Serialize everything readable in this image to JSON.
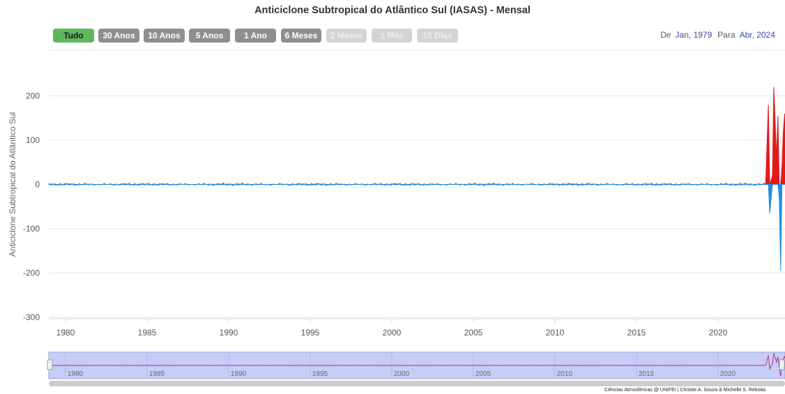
{
  "title": "Anticiclone Subtropical do Atlântico Sul (IASAS) - Mensal",
  "range_buttons": [
    {
      "label": "Tudo",
      "state": "active"
    },
    {
      "label": "30 Anos",
      "state": "enabled"
    },
    {
      "label": "10 Anos",
      "state": "enabled"
    },
    {
      "label": "5 Anos",
      "state": "enabled"
    },
    {
      "label": "1 Ano",
      "state": "enabled"
    },
    {
      "label": "6 Meses",
      "state": "enabled"
    },
    {
      "label": "2 Meses",
      "state": "disabled"
    },
    {
      "label": "1 Mês",
      "state": "disabled"
    },
    {
      "label": "15 Dias",
      "state": "disabled"
    }
  ],
  "date_range": {
    "from_label": "De",
    "from_value": "Jan, 1979",
    "to_label": "Para",
    "to_value": "Abr, 2024"
  },
  "credit": "Ciências Atmosféricas @ UNIFEI | Christie A. Souza & Michelle S. Reboita",
  "colors": {
    "positive": "#e31a1c",
    "negative": "#1f8fe0",
    "active_button": "#5cb85c",
    "navigator_fill": "#c8cdf7"
  },
  "chart_data": {
    "type": "area",
    "title": "Anticiclone Subtropical do Atlântico Sul (IASAS) - Mensal",
    "xlabel": "",
    "ylabel": "Anticiclone Subtropical do Atlântico Sul",
    "x_range": [
      "1979-01",
      "2024-04"
    ],
    "ylim": [
      -300,
      250
    ],
    "yticks": [
      -300,
      -200,
      -100,
      0,
      100,
      200
    ],
    "xticks": [
      "1980",
      "1985",
      "1990",
      "1995",
      "2000",
      "2005",
      "2010",
      "2015",
      "2020"
    ],
    "grid": "horizontal",
    "legend": "none",
    "baseline_note_values": {
      "typical_amplitude": 4
    },
    "series": [
      {
        "x": [
          "1979-01",
          "1983-06",
          "1988-01",
          "1992-06",
          "1997-01",
          "2001-06",
          "2006-01",
          "2010-06",
          "2015-01",
          "2019-06",
          "2022-12",
          "2023-02",
          "2023-03",
          "2023-05",
          "2023-06",
          "2023-08",
          "2023-09",
          "2023-10",
          "2023-11",
          "2023-12",
          "2024-01",
          "2024-02",
          "2024-03",
          "2024-04"
        ],
        "values": [
          1,
          -2,
          2,
          -3,
          1,
          2,
          -2,
          1,
          2,
          -1,
          0,
          180,
          -65,
          20,
          220,
          60,
          155,
          -30,
          -195,
          40,
          120,
          160,
          40,
          160
        ]
      }
    ]
  },
  "navigator": {
    "xticks": [
      "1980",
      "1985",
      "1990",
      "1995",
      "2000",
      "2005",
      "2010",
      "2015",
      "2020"
    ]
  }
}
